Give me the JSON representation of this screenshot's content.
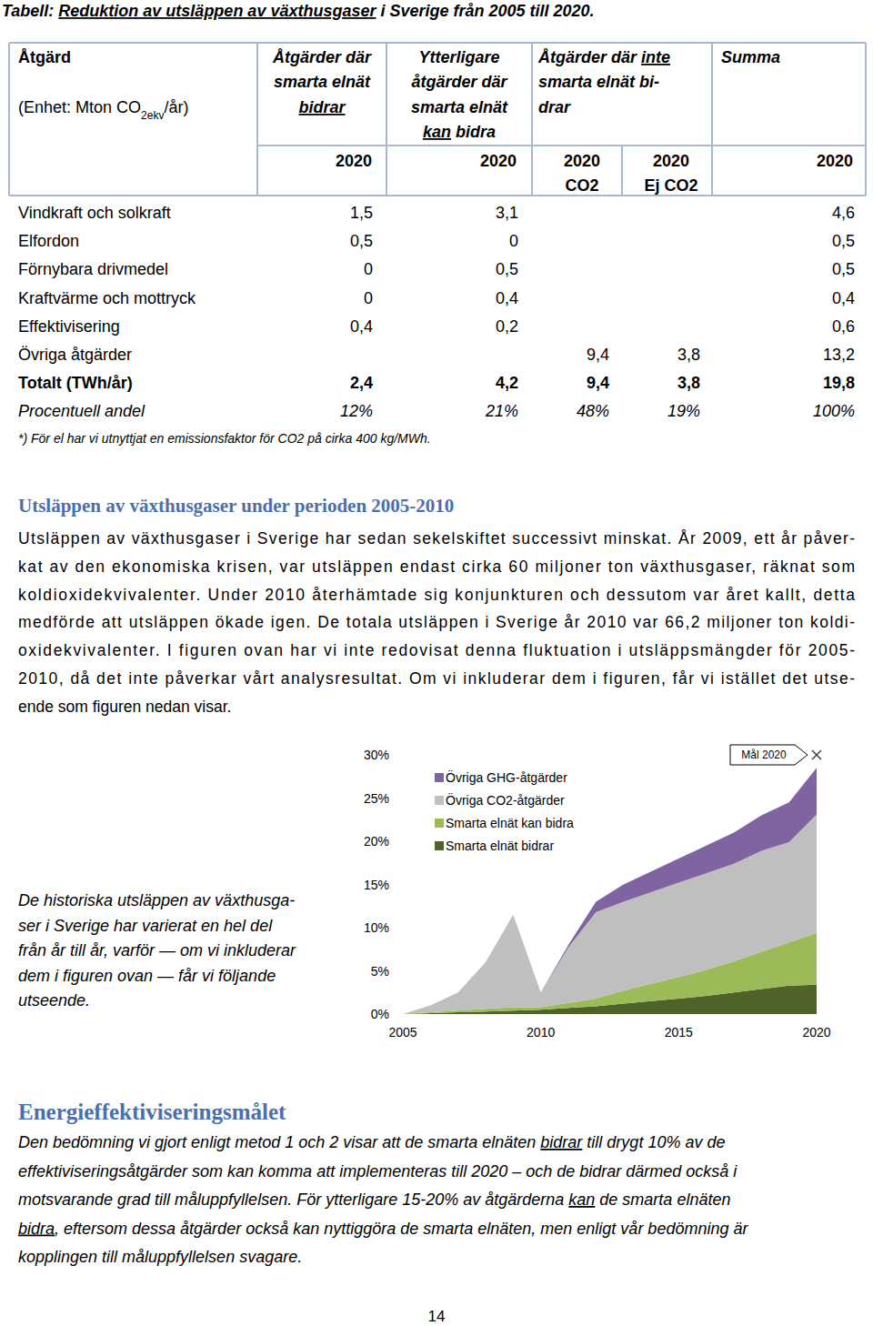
{
  "header": {
    "title": [
      {
        "t": "Tabell: "
      },
      {
        "t": "Reduktion av utsläppen av växthusgaser",
        "u": true
      },
      {
        "t": " i Sverige från 2005 till 2020."
      }
    ]
  },
  "table": {
    "columns": [
      [
        [
          {
            "t": "Åtgärd"
          }
        ],
        [
          {
            "t": "(Enhet: Mton CO"
          },
          {
            "t": "2ekv",
            "sub": true
          },
          {
            "t": "/år)"
          }
        ]
      ],
      [
        [
          {
            "t": "Åtgärder där"
          }
        ],
        [
          {
            "t": "smarta elnät"
          }
        ],
        [
          {
            "t": "bidrar",
            "u": true
          }
        ]
      ],
      [
        [
          {
            "t": "Ytterligare"
          }
        ],
        [
          {
            "t": "åtgärder där"
          }
        ],
        [
          {
            "t": "smarta elnät"
          }
        ],
        [
          {
            "t": "kan",
            "u": true
          },
          {
            "t": " bidra"
          }
        ]
      ],
      [
        [
          {
            "t": "Åtgärder där "
          },
          {
            "t": "inte",
            "u": true
          }
        ],
        [
          {
            "t": "smarta elnät bi-"
          }
        ],
        [
          {
            "t": "drar"
          }
        ]
      ],
      [
        [
          {
            "t": "Summa"
          }
        ]
      ]
    ],
    "subheader": [
      [
        "2020"
      ],
      [
        "2020"
      ],
      [
        "2020",
        "CO2"
      ],
      [
        "2020",
        "Ej CO2"
      ],
      [
        "2020"
      ]
    ],
    "rows": [
      {
        "label": "Vindkraft och solkraft",
        "cells": [
          "1,5",
          "3,1",
          null,
          null,
          "4,6"
        ]
      },
      {
        "label": "Elfordon",
        "cells": [
          "0,5",
          "0",
          null,
          null,
          "0,5"
        ]
      },
      {
        "label": "Förnybara drivmedel",
        "cells": [
          "0",
          "0,5",
          null,
          null,
          "0,5"
        ]
      },
      {
        "label": "Kraftvärme och mottryck",
        "cells": [
          "0",
          "0,4",
          null,
          null,
          "0,4"
        ]
      },
      {
        "label": "Effektivisering",
        "cells": [
          "0,4",
          "0,2",
          null,
          null,
          "0,6"
        ]
      },
      {
        "label": "Övriga åtgärder",
        "cells": [
          null,
          null,
          "9,4",
          "3,8",
          "13,2"
        ]
      },
      {
        "label": "Totalt (TWh/år)",
        "cells": [
          "2,4",
          "4,2",
          "9,4",
          "3,8",
          "19,8"
        ]
      },
      {
        "label": "Procentuell andel",
        "cells": [
          "12%",
          "21%",
          "48%",
          "19%",
          "100%"
        ]
      }
    ],
    "footnote": "*) För el har vi utnyttjat en emissionsfaktor för CO2 på cirka 400 kg/MWh."
  },
  "section1": {
    "heading": "Utsläppen av växthusgaser under perioden 2005-2010",
    "lines": [
      "Utsläppen av växthusgaser i Sverige har sedan sekelskiftet successivt minskat. År 2009, ett år påver-",
      "kat av den ekonomiska krisen, var utsläppen endast cirka 60 miljoner ton växthusgaser, räknat som",
      "koldioxidekvivalenter. Under 2010 återhämtade sig konjunkturen och dessutom var året kallt, detta",
      "medförde att utsläppen ökade igen. De totala utsläppen i Sverige år 2010 var 66,2 miljoner ton koldi-",
      "oxidekvivalenter. I figuren ovan har vi inte redovisat denna fluktuation i utsläppsmängder för 2005-",
      "2010, då det inte påverkar vårt analysresultat. Om vi inkluderar dem i figuren, får vi istället det utse-",
      "ende som figuren nedan visar."
    ]
  },
  "figure_caption": [
    "De historiska utsläppen av växthusga-",
    "ser i Sverige har varierat en hel del",
    "från år till år, varför — om vi inkluderar",
    "dem i figuren ovan — får vi följande",
    "utseende."
  ],
  "chart_data": {
    "type": "area",
    "stacked": true,
    "x": [
      2005,
      2006,
      2007,
      2008,
      2009,
      2010,
      2011,
      2012,
      2013,
      2014,
      2015,
      2016,
      2017,
      2018,
      2019,
      2020
    ],
    "series": [
      {
        "name": "Smarta elnät bidrar",
        "color": "#4f6228",
        "values": [
          0,
          0.1,
          0.2,
          0.3,
          0.4,
          0.5,
          0.7,
          0.9,
          1.2,
          1.5,
          1.8,
          2.1,
          2.5,
          2.9,
          3.3,
          3.4
        ]
      },
      {
        "name": "Smarta elnät kan bidra",
        "color": "#9bbb59",
        "values": [
          0,
          0.1,
          0.2,
          0.3,
          0.4,
          0.3,
          0.6,
          0.9,
          1.5,
          2.0,
          2.5,
          3.0,
          3.6,
          4.3,
          5.0,
          6.0
        ]
      },
      {
        "name": "Övriga CO2-åtgärder",
        "color": "#bfbfbf",
        "values": [
          0,
          0.8,
          2.1,
          5.4,
          10.7,
          1.7,
          6.4,
          10.0,
          10.3,
          10.6,
          10.9,
          11.2,
          11.3,
          11.7,
          11.6,
          13.7
        ]
      },
      {
        "name": "Övriga GHG-åtgärder",
        "color": "#8064a2",
        "values": [
          0,
          0,
          0,
          0,
          0,
          0,
          0.3,
          1.2,
          2.0,
          2.4,
          2.8,
          3.2,
          3.6,
          4.1,
          4.6,
          5.4
        ]
      }
    ],
    "xlim": [
      2005,
      2020
    ],
    "xticks": [
      2005,
      2010,
      2015,
      2020
    ],
    "ylim": [
      0,
      30
    ],
    "yticks": [
      {
        "value": 0,
        "label": "0%"
      },
      {
        "value": 5,
        "label": "5%"
      },
      {
        "value": 10,
        "label": "10%"
      },
      {
        "value": 15,
        "label": "15%"
      },
      {
        "value": 20,
        "label": "20%"
      },
      {
        "value": 25,
        "label": "25%"
      },
      {
        "value": 30,
        "label": "30%"
      }
    ],
    "grid": false,
    "legend": "top",
    "target": {
      "x": 2020,
      "value": 30,
      "label": "Mål 2020"
    }
  },
  "section2": {
    "heading": "Energieffektiviseringsmålet",
    "lines": [
      [
        {
          "t": "Den bedömning vi gjort enligt metod 1 och 2 visar att de smarta elnäten "
        },
        {
          "t": "bidrar",
          "u": true
        },
        {
          "t": " till drygt 10% av de"
        }
      ],
      [
        {
          "t": "effektiviseringsåtgärder som kan komma att implementeras till 2020 – och de bidrar därmed också i"
        }
      ],
      [
        {
          "t": "motsvarande grad till måluppfyllelsen. För ytterligare 15-20% av åtgärderna "
        },
        {
          "t": "kan",
          "u": true
        },
        {
          "t": " de smarta elnäten"
        }
      ],
      [
        {
          "t": "bidra",
          "u": true
        },
        {
          "t": ", eftersom dessa åtgärder också kan nyttiggöra de smarta elnäten, men enligt vår bedömning är"
        }
      ],
      [
        {
          "t": "kopplingen till måluppfyllelsen svagare."
        }
      ]
    ]
  },
  "page_number": "14"
}
